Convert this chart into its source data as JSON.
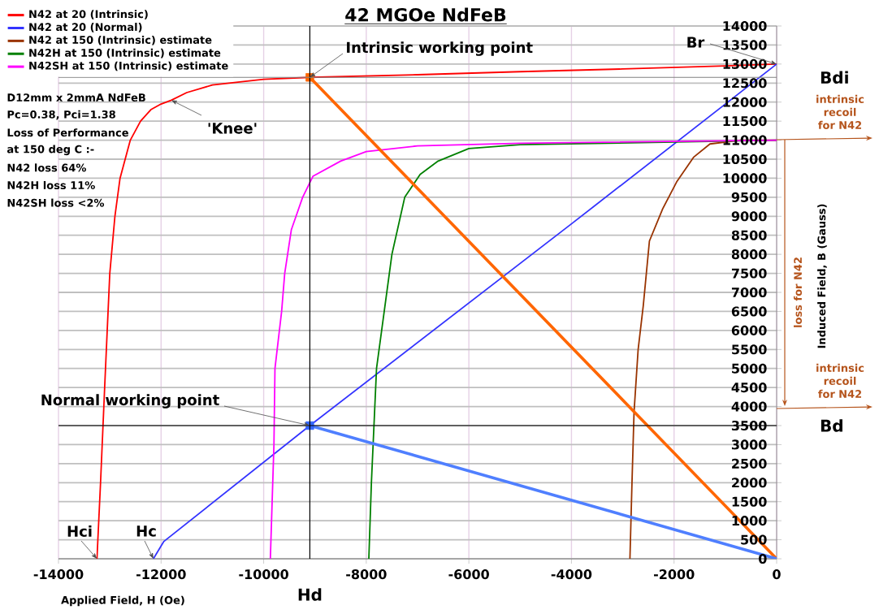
{
  "chart_data": {
    "type": "line",
    "title": "42 MGOe NdFeB",
    "xlabel": "Applied Field, H (Oe)",
    "ylabel": "Induced Field, B (Gauss)",
    "xlim": [
      -14000,
      0
    ],
    "ylim": [
      0,
      14000
    ],
    "xticks": [
      -14000,
      -12000,
      -10000,
      -8000,
      -6000,
      -4000,
      -2000,
      0
    ],
    "yticks": [
      0,
      500,
      1000,
      1500,
      2000,
      2500,
      3000,
      3500,
      4000,
      4500,
      5000,
      5500,
      6000,
      6500,
      7000,
      7500,
      8000,
      8500,
      9000,
      9500,
      10000,
      10500,
      11000,
      11500,
      12000,
      12500,
      13000,
      13500,
      14000
    ],
    "grid": true,
    "legend": "top left",
    "series": [
      {
        "name": "N42 at 20 (Intrinsic)",
        "color": "#ff0000",
        "x": [
          -13250,
          -13180,
          -13100,
          -13050,
          -13000,
          -12900,
          -12800,
          -12600,
          -12400,
          -12200,
          -12000,
          -11800,
          -11500,
          -11000,
          -10000,
          -9100,
          -7000,
          -5000,
          -3000,
          -1000,
          0
        ],
        "values": [
          0,
          2000,
          4500,
          6000,
          7500,
          9000,
          10000,
          11000,
          11500,
          11800,
          11950,
          12050,
          12250,
          12450,
          12600,
          12650,
          12720,
          12800,
          12870,
          12950,
          13000
        ]
      },
      {
        "name": "N42 at 20 (Normal)",
        "color": "#3333ff",
        "x": [
          -12150,
          -11950,
          -9100,
          -4000,
          0
        ],
        "values": [
          0,
          450,
          3500,
          8800,
          13000
        ]
      },
      {
        "name": "N42 at 150 (Intrinsic) estimate",
        "color": "#993300",
        "x": [
          -2860,
          -2820,
          -2780,
          -2700,
          -2600,
          -2480,
          -2220,
          -1950,
          -1620,
          -1300,
          -700,
          0
        ],
        "values": [
          0,
          2000,
          3850,
          5500,
          6650,
          8350,
          9200,
          9900,
          10550,
          10900,
          11000,
          11000
        ]
      },
      {
        "name": "N42H at 150 (Intrinsic) estimate",
        "color": "#008000",
        "x": [
          -7950,
          -7900,
          -7800,
          -7650,
          -7500,
          -7250,
          -6950,
          -6600,
          -6000,
          -5000,
          -3000,
          0
        ],
        "values": [
          0,
          2000,
          5000,
          6500,
          8000,
          9500,
          10100,
          10450,
          10780,
          10880,
          null,
          11000
        ]
      },
      {
        "name": "N42SH at 150 (Intrinsic) estimate",
        "color": "#ff00ff",
        "x": [
          -9870,
          -9800,
          -9780,
          -9650,
          -9590,
          -9460,
          -9240,
          -9040,
          -8500,
          -8000,
          -7000,
          -5000,
          0
        ],
        "values": [
          0,
          3000,
          5000,
          6500,
          7500,
          8650,
          9500,
          10050,
          10450,
          10700,
          10850,
          10920,
          11000
        ]
      },
      {
        "color": "#ff6600",
        "x": [
          -9100,
          0
        ],
        "values": [
          12650,
          0
        ]
      },
      {
        "color": "#4f7fff",
        "x": [
          -9100,
          0
        ],
        "values": [
          3500,
          0
        ]
      },
      {
        "type": "scatter",
        "marker": "square",
        "colors": [
          "#ff6600",
          "#3366ff"
        ],
        "x": [
          -9100,
          -9100
        ],
        "values": [
          12650,
          3500
        ]
      }
    ],
    "ref_lines": [
      {
        "axis": "x",
        "value": -9100,
        "label": "Hd",
        "color": "#000000"
      },
      {
        "axis": "y",
        "value": 3500,
        "label": "Bd",
        "color": "#000000"
      },
      {
        "axis": "y",
        "value": 12650,
        "label": "Bdi",
        "color": "#808080"
      }
    ],
    "annotations": [
      {
        "text": "Intrinsic working point",
        "x": -9100,
        "y": 12650
      },
      {
        "text": "'Knee'",
        "x": -11800,
        "y": 12050
      },
      {
        "text": "Normal working point",
        "x": -9100,
        "y": 3500
      },
      {
        "text": "Hci",
        "x": -13250,
        "y": 0
      },
      {
        "text": "Hc",
        "x": -12150,
        "y": 0
      },
      {
        "text": "Br",
        "x": 0,
        "y": 13000
      },
      "intrinsic recoil for N42",
      "intrinsic recoil for N42",
      "loss for N42",
      "D12mm x 2mmA NdFeB",
      "Pc=0.38, Pci=1.38",
      "Loss of Performance",
      "at 150 deg C :-",
      "N42 loss 64%",
      "N42H loss 11%",
      "N42SH loss <2%"
    ]
  }
}
